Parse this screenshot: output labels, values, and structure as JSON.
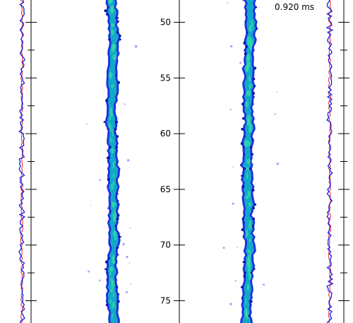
{
  "time_label": "0.920 ms",
  "colors": {
    "profile_left": "#e8202a",
    "profile_right": "#1a1adc",
    "field_low": "#1f2fe0",
    "field_mid": "#12a8c8",
    "field_high": "#33d6a8",
    "spot": "#7a5cff",
    "axis": "#000000"
  },
  "chart_data": [
    {
      "type": "line",
      "panel": "left-profile",
      "series": [
        {
          "values": [
            0.48,
            0.5,
            0.46,
            0.52,
            0.49,
            0.47,
            0.51,
            0.48,
            0.45,
            0.5,
            0.53,
            0.49,
            0.47,
            0.51,
            0.48,
            0.5
          ]
        },
        {
          "values": [
            0.52,
            0.47,
            0.55,
            0.43,
            0.56,
            0.44,
            0.53,
            0.46,
            0.57,
            0.42,
            0.55,
            0.47,
            0.54,
            0.44,
            0.58,
            0.46
          ]
        }
      ]
    },
    {
      "type": "heatmap",
      "panel": "center-left",
      "y_ticks": [
        50,
        55,
        60,
        65,
        70,
        75
      ]
    },
    {
      "type": "heatmap",
      "panel": "center-right",
      "y_ticks": [
        50,
        55,
        60,
        65,
        70,
        75
      ]
    },
    {
      "type": "line",
      "panel": "right-profile",
      "series": [
        {
          "values": [
            0.5,
            0.48,
            0.52,
            0.47,
            0.51,
            0.49,
            0.46,
            0.52,
            0.5,
            0.47,
            0.53,
            0.48,
            0.5,
            0.46,
            0.51,
            0.49
          ]
        },
        {
          "values": [
            0.45,
            0.56,
            0.44,
            0.57,
            0.43,
            0.55,
            0.47,
            0.58,
            0.42,
            0.54,
            0.46,
            0.57,
            0.44,
            0.55,
            0.43,
            0.56
          ]
        }
      ]
    }
  ],
  "y_axis": {
    "range": [
      48.0,
      77.0
    ],
    "ticks": [
      {
        "value": 50,
        "label": "50"
      },
      {
        "value": 55,
        "label": "55"
      },
      {
        "value": 60,
        "label": "60"
      },
      {
        "value": 65,
        "label": "65"
      },
      {
        "value": 70,
        "label": "70"
      },
      {
        "value": 75,
        "label": "75"
      }
    ]
  }
}
